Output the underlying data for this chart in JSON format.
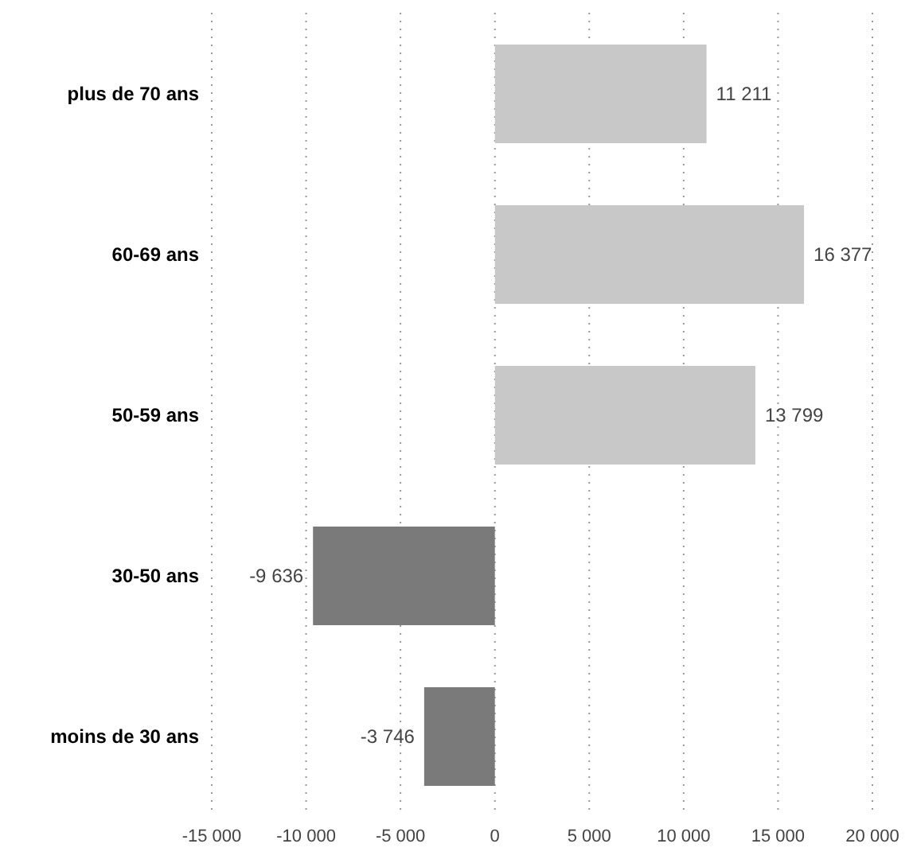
{
  "chart_data": {
    "type": "bar",
    "orientation": "horizontal",
    "categories": [
      "plus de 70 ans",
      "60-69 ans",
      "50-59 ans",
      "30-50 ans",
      "moins de 30 ans"
    ],
    "values": [
      11211,
      16377,
      13799,
      -9636,
      -3746
    ],
    "colors": [
      "#c8c8c8",
      "#c8c8c8",
      "#c8c8c8",
      "#7a7a7a",
      "#7a7a7a"
    ],
    "value_labels": [
      "11 211",
      "16 377",
      "13 799",
      "-9 636",
      "-3 746"
    ],
    "xlim": [
      -15000,
      20000
    ],
    "xticks": [
      {
        "value": -15000,
        "label": "-15 000"
      },
      {
        "value": -10000,
        "label": "-10 000"
      },
      {
        "value": -5000,
        "label": "-5 000"
      },
      0,
      {
        "value": 5000,
        "label": "5 000"
      },
      {
        "value": 10000,
        "label": "10 000"
      },
      {
        "value": 15000,
        "label": "15 000"
      },
      {
        "value": 20000,
        "label": "20 000"
      }
    ],
    "grid": "x"
  }
}
